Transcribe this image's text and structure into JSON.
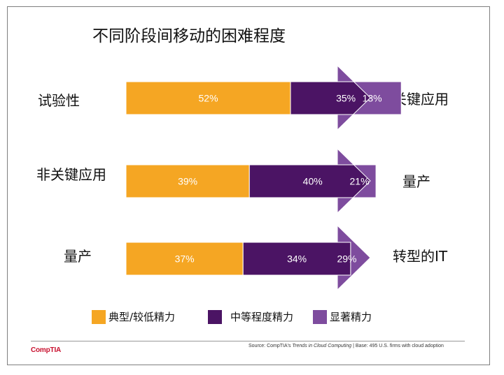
{
  "title": "不同阶段间移动的困难程度",
  "chart_data": {
    "type": "bar",
    "orientation": "horizontal-stacked-100",
    "rows": [
      {
        "from": "试验性",
        "to": "非关键应用",
        "values": [
          52,
          35,
          13
        ],
        "labels": [
          "52%",
          "35%",
          "13%"
        ]
      },
      {
        "from": "非关键应用",
        "to": "量产",
        "values": [
          39,
          40,
          21
        ],
        "labels": [
          "39%",
          "40%",
          "21%"
        ]
      },
      {
        "from": "量产",
        "to": "转型的IT",
        "values": [
          37,
          34,
          29
        ],
        "labels": [
          "37%",
          "34%",
          "29%"
        ]
      }
    ],
    "series": [
      {
        "name": "典型/较低精力",
        "color": "#F5A623"
      },
      {
        "name": "中等程度精力",
        "color": "#4B1464"
      },
      {
        "name": "显著精力",
        "color": "#7E4C9E"
      }
    ],
    "legend_position": "bottom"
  },
  "footer": {
    "source_prefix": "Source: CompTIA's ",
    "source_title": "Trends in Cloud Computing",
    "source_suffix": " | Base: 495 U.S. firms with cloud adoption",
    "logo": "CompTIA"
  }
}
